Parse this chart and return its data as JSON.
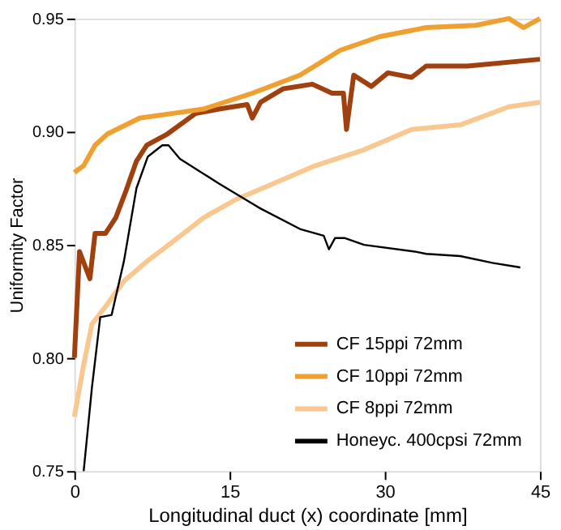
{
  "chart_data": {
    "type": "line",
    "xlabel": "Longitudinal duct (x) coordinate [mm]",
    "ylabel": "Uniformity Factor",
    "xlim": [
      0,
      45
    ],
    "xticks": [
      0,
      15,
      30,
      45
    ],
    "ylim": [
      0.75,
      0.95
    ],
    "yticks": [
      {
        "value": 0.75,
        "label": "0.75"
      },
      {
        "value": 0.8,
        "label": "0.80"
      },
      {
        "value": 0.85,
        "label": "0.85"
      },
      {
        "value": 0.9,
        "label": "0.90"
      },
      {
        "value": 0.95,
        "label": "0.95"
      }
    ],
    "grid": false,
    "legend": "bottom right",
    "marker": "none",
    "line_style": "solid",
    "series": [
      {
        "name": "CF 15ppi 72mm",
        "color": "#a0400f",
        "x": [
          0,
          0.5,
          1.5,
          2,
          3,
          4,
          5,
          6,
          7,
          9,
          11.7,
          14,
          16.7,
          17.2,
          18,
          20.2,
          23,
          24.9,
          26,
          26.3,
          27,
          28.7,
          30.3,
          32.6,
          34,
          38,
          45
        ],
        "values": [
          0.8,
          0.847,
          0.835,
          0.855,
          0.855,
          0.862,
          0.874,
          0.887,
          0.894,
          0.899,
          0.908,
          0.91,
          0.912,
          0.906,
          0.913,
          0.919,
          0.921,
          0.917,
          0.917,
          0.901,
          0.925,
          0.92,
          0.926,
          0.924,
          0.929,
          0.929,
          0.932
        ]
      },
      {
        "name": "CF 10ppi 72mm",
        "color": "#f0a030",
        "x": [
          0,
          0.9,
          2,
          3.2,
          6.3,
          9.4,
          12.5,
          17.2,
          21.8,
          25.7,
          29.5,
          34,
          38.8,
          42,
          43.4,
          45
        ],
        "values": [
          0.882,
          0.885,
          0.894,
          0.899,
          0.906,
          0.908,
          0.91,
          0.917,
          0.925,
          0.936,
          0.942,
          0.946,
          0.947,
          0.95,
          0.946,
          0.95
        ]
      },
      {
        "name": "CF 8ppi 72mm",
        "color": "#f8c890",
        "x": [
          0,
          0.9,
          1.7,
          2.9,
          4.8,
          7.1,
          9.4,
          12.5,
          15.6,
          18.7,
          23.3,
          28,
          32.6,
          37.3,
          42,
          45
        ],
        "values": [
          0.774,
          0.797,
          0.815,
          0.822,
          0.834,
          0.843,
          0.851,
          0.862,
          0.87,
          0.876,
          0.885,
          0.892,
          0.901,
          0.903,
          0.911,
          0.913
        ]
      },
      {
        "name": "Honeyc. 400cpsi 72mm",
        "color": "#000000",
        "x": [
          0.9,
          1.7,
          2.5,
          3.6,
          4.8,
          6,
          7.1,
          8.5,
          9.1,
          10.2,
          14,
          18,
          21.8,
          24.1,
          24.6,
          25.2,
          26.1,
          28,
          32.9,
          34,
          37.3,
          40.4,
          43.1
        ],
        "values": [
          0.75,
          0.787,
          0.818,
          0.819,
          0.843,
          0.875,
          0.889,
          0.894,
          0.894,
          0.888,
          0.877,
          0.866,
          0.857,
          0.854,
          0.848,
          0.853,
          0.853,
          0.85,
          0.847,
          0.846,
          0.845,
          0.842,
          0.84
        ]
      }
    ]
  }
}
